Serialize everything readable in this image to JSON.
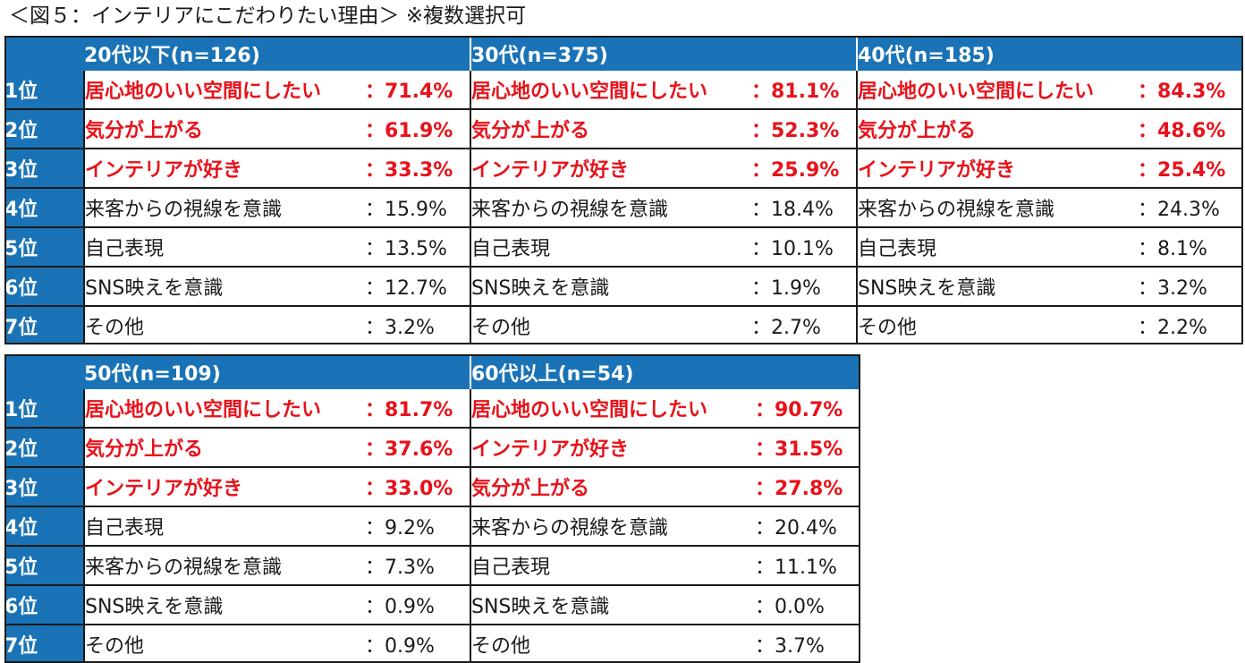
{
  "caption": "＜図５：インテリアにこだわりたい理由＞ ※複数選択可",
  "ranks": [
    "1位",
    "2位",
    "3位",
    "4位",
    "5位",
    "6位",
    "7位"
  ],
  "colors": {
    "header_blue": "#1a73b6",
    "highlight_red": "#e8121a",
    "text": "#1a1a1a"
  },
  "tables": [
    {
      "groups": [
        {
          "header": "20代以下(n=126)",
          "rows": [
            {
              "item": "居心地のいい空間にしたい",
              "pct": "：71.4%",
              "highlight": true
            },
            {
              "item": "気分が上がる",
              "pct": "：61.9%",
              "highlight": true
            },
            {
              "item": "インテリアが好き",
              "pct": "：33.3%",
              "highlight": true
            },
            {
              "item": "来客からの視線を意識",
              "pct": "：15.9%",
              "highlight": false
            },
            {
              "item": "自己表現",
              "pct": "：13.5%",
              "highlight": false
            },
            {
              "item": "SNS映えを意識",
              "pct": "：12.7%",
              "highlight": false
            },
            {
              "item": "その他",
              "pct": "：3.2%",
              "highlight": false
            }
          ]
        },
        {
          "header": "30代(n=375)",
          "rows": [
            {
              "item": "居心地のいい空間にしたい",
              "pct": "：81.1%",
              "highlight": true
            },
            {
              "item": "気分が上がる",
              "pct": "：52.3%",
              "highlight": true
            },
            {
              "item": "インテリアが好き",
              "pct": "：25.9%",
              "highlight": true
            },
            {
              "item": "来客からの視線を意識",
              "pct": "：18.4%",
              "highlight": false
            },
            {
              "item": "自己表現",
              "pct": "：10.1%",
              "highlight": false
            },
            {
              "item": "SNS映えを意識",
              "pct": "：1.9%",
              "highlight": false
            },
            {
              "item": "その他",
              "pct": "：2.7%",
              "highlight": false
            }
          ]
        },
        {
          "header": "40代(n=185)",
          "rows": [
            {
              "item": "居心地のいい空間にしたい",
              "pct": "：84.3%",
              "highlight": true
            },
            {
              "item": "気分が上がる",
              "pct": "：48.6%",
              "highlight": true
            },
            {
              "item": "インテリアが好き",
              "pct": "：25.4%",
              "highlight": true
            },
            {
              "item": "来客からの視線を意識",
              "pct": "：24.3%",
              "highlight": false
            },
            {
              "item": "自己表現",
              "pct": "：8.1%",
              "highlight": false
            },
            {
              "item": "SNS映えを意識",
              "pct": "：3.2%",
              "highlight": false
            },
            {
              "item": "その他",
              "pct": "：2.2%",
              "highlight": false
            }
          ]
        }
      ]
    },
    {
      "groups": [
        {
          "header": "50代(n=109)",
          "rows": [
            {
              "item": "居心地のいい空間にしたい",
              "pct": "：81.7%",
              "highlight": true
            },
            {
              "item": "気分が上がる",
              "pct": "：37.6%",
              "highlight": true
            },
            {
              "item": "インテリアが好き",
              "pct": "：33.0%",
              "highlight": true
            },
            {
              "item": "自己表現",
              "pct": "：9.2%",
              "highlight": false
            },
            {
              "item": "来客からの視線を意識",
              "pct": "：7.3%",
              "highlight": false
            },
            {
              "item": "SNS映えを意識",
              "pct": "：0.9%",
              "highlight": false
            },
            {
              "item": "その他",
              "pct": "：0.9%",
              "highlight": false
            }
          ]
        },
        {
          "header": "60代以上(n=54)",
          "rows": [
            {
              "item": "居心地のいい空間にしたい",
              "pct": "：90.7%",
              "highlight": true
            },
            {
              "item": "インテリアが好き",
              "pct": "：31.5%",
              "highlight": true
            },
            {
              "item": "気分が上がる",
              "pct": "：27.8%",
              "highlight": true
            },
            {
              "item": "来客からの視線を意識",
              "pct": "：20.4%",
              "highlight": false
            },
            {
              "item": "自己表現",
              "pct": "：11.1%",
              "highlight": false
            },
            {
              "item": "SNS映えを意識",
              "pct": "：0.0%",
              "highlight": false
            },
            {
              "item": "その他",
              "pct": "：3.7%",
              "highlight": false
            }
          ]
        }
      ]
    }
  ]
}
